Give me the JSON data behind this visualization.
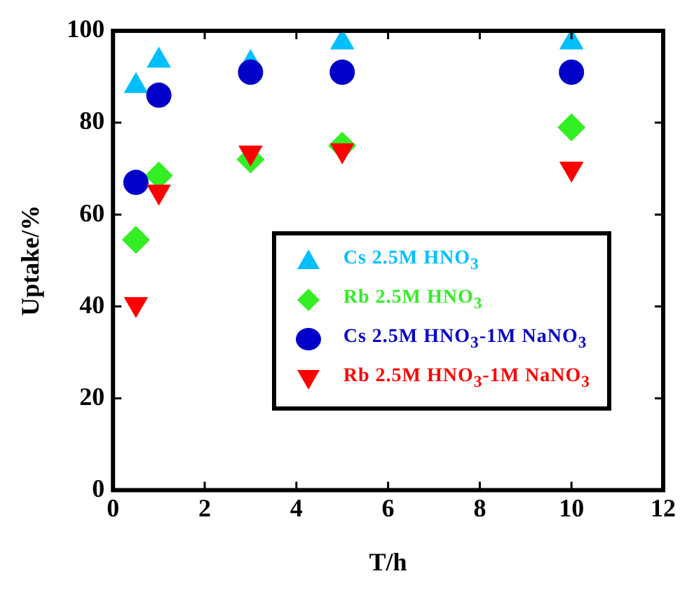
{
  "chart_data": {
    "type": "scatter",
    "xlabel": "T/h",
    "ylabel": "Uptake/%",
    "xlim": [
      0,
      12
    ],
    "xticks": [
      0,
      2,
      4,
      6,
      8,
      10,
      12
    ],
    "ylim": [
      0,
      100
    ],
    "yticks": [
      0,
      20,
      40,
      60,
      80,
      100
    ],
    "grid": false,
    "legend": "bottom right",
    "series": [
      {
        "name": "Cs 2.5M HNO$_{3}$",
        "color": "#00bfff",
        "marker": "triangle",
        "x": [
          0.5,
          1,
          3,
          5,
          10
        ],
        "values": [
          88,
          93.5,
          93,
          97.5,
          97.5
        ]
      },
      {
        "name": "Rb 2.5M HNO$_{3}$",
        "color": "#33ee22",
        "marker": "diamond",
        "x": [
          0.5,
          1,
          3,
          5,
          10
        ],
        "values": [
          54.5,
          68.5,
          72,
          75,
          79
        ]
      },
      {
        "name": "Cs 2.5M HNO$_{3}$-1M NaNO$_{3}$",
        "color": "#0000c8",
        "marker": "circle",
        "x": [
          0.5,
          1,
          3,
          5,
          10
        ],
        "values": [
          67,
          86,
          91,
          91,
          91
        ]
      },
      {
        "name": "Rb 2.5M HNO$_{3}$-1M NaNO$_{3}$",
        "color": "#ff0000",
        "marker": "triangle-down",
        "x": [
          0.5,
          1,
          3,
          5,
          10
        ],
        "values": [
          40.5,
          65,
          73.5,
          74,
          70
        ]
      }
    ]
  }
}
